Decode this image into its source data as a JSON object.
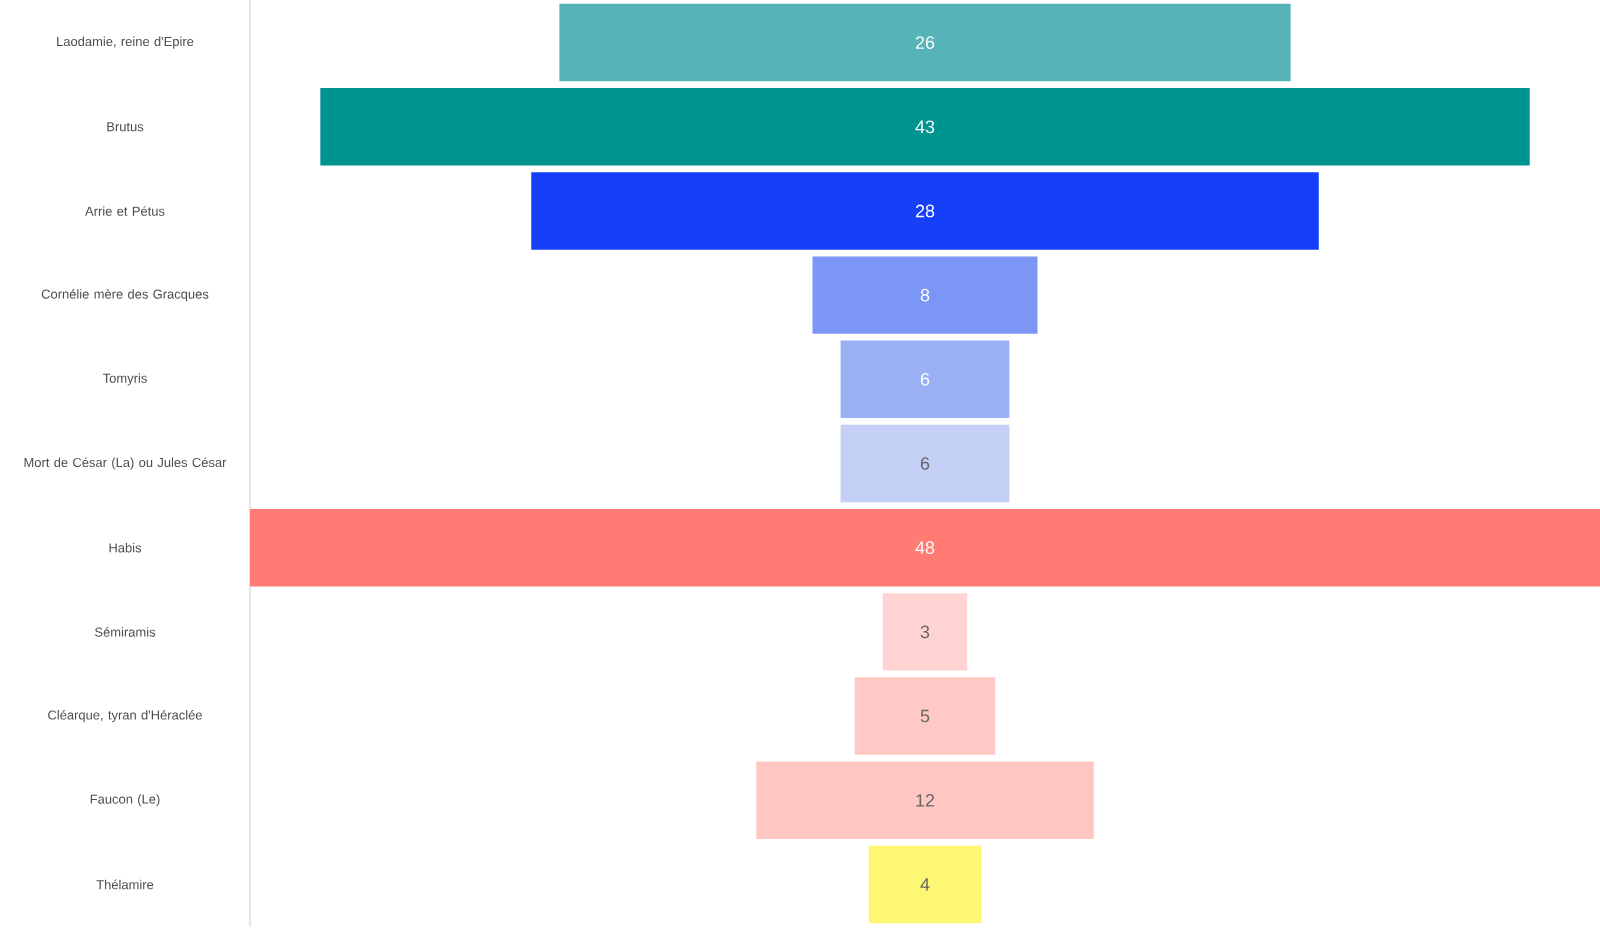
{
  "chart_data": {
    "type": "other",
    "categories": [
      "Laodamie, reine d'Epire",
      "Brutus",
      "Arrie et Pétus",
      "Cornélie mère des Gracques",
      "Tomyris",
      "Mort de César (La) ou Jules César",
      "Habis",
      "Sémiramis",
      "Cléarque, tyran d'Héraclée",
      "Faucon (Le)",
      "Thélamire"
    ],
    "values": [
      26,
      43,
      28,
      8,
      6,
      6,
      48,
      3,
      5,
      12,
      4
    ],
    "colors": [
      "#56b4b8",
      "#009490",
      "#1540f8",
      "#7b96f4",
      "#9ab0f4",
      "#c3cff5",
      "#ff7b74",
      "#ffd3d1",
      "#ffcac6",
      "#ffc6c2",
      "#fdf773"
    ],
    "data_labels": true
  }
}
